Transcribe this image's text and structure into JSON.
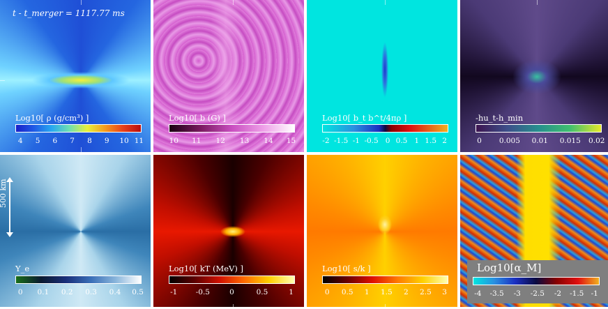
{
  "header": {
    "time_label": "t - t_merger = 1117.77 ms"
  },
  "scale": {
    "label": "500 km"
  },
  "panels": [
    {
      "label": "Log10[ ρ (g/cm³) ]",
      "ticks": [
        "4",
        "5",
        "6",
        "7",
        "8",
        "9",
        "10",
        "11"
      ],
      "colors": {
        "bg1": "#1d4fd0",
        "bg2": "#58b4ff",
        "core": "#f2f53a"
      }
    },
    {
      "label": "Log10[ b (G) ]",
      "ticks": [
        "10",
        "11",
        "12",
        "13",
        "14",
        "15"
      ],
      "colors": {
        "bg1": "#d963d0",
        "bg2": "#f2a8ef"
      }
    },
    {
      "label": "Log10[ b_t b^t/4πρ ]",
      "ticks": [
        "-2",
        "-1.5",
        "-1",
        "-0.5",
        "0",
        "0.5",
        "1",
        "1.5",
        "2"
      ],
      "colors": {
        "bg1": "#00e5e0"
      }
    },
    {
      "label": "-hu_t-h_min",
      "ticks": [
        "0",
        "0.005",
        "0.01",
        "0.015",
        "0.02"
      ],
      "colors": {
        "bg1": "#1c1030",
        "bg2": "#5f4a8a"
      }
    },
    {
      "label": "Y_e",
      "ticks": [
        "0",
        "0.1",
        "0.2",
        "0.3",
        "0.4",
        "0.5"
      ],
      "colors": {
        "bg1": "#2a6ea5",
        "bg2": "#bfe0f0"
      }
    },
    {
      "label": "Log10[ kT (MeV) ]",
      "ticks": [
        "-1",
        "-0.5",
        "0",
        "0.5",
        "1"
      ],
      "colors": {
        "bg1": "#e01300",
        "bg2": "#1a0000",
        "core": "#ffe94a"
      }
    },
    {
      "label": "Log10[ s/k ]",
      "ticks": [
        "0",
        "0.5",
        "1",
        "1.5",
        "2",
        "2.5",
        "3"
      ],
      "colors": {
        "bg1": "#ff8400",
        "bg2": "#ffc000"
      }
    },
    {
      "label": "Log10[α_M]",
      "ticks": [
        "-4",
        "-3.5",
        "-3",
        "-2.5",
        "-2",
        "-1.5",
        "-1"
      ],
      "colors": {
        "bg1": "#d42d00",
        "bg2": "#1b48d2",
        "core": "#ffde00"
      }
    }
  ]
}
